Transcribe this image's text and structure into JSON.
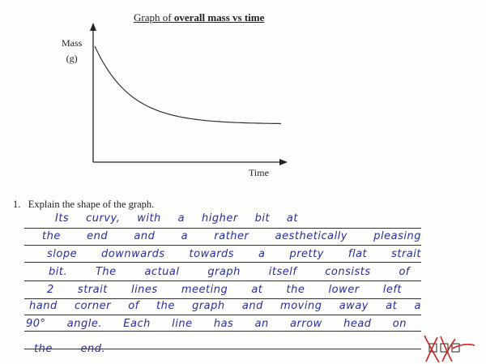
{
  "chart_data": {
    "type": "line",
    "title_plain": "Graph of",
    "title_bold": "overall mass vs time",
    "ylabel_line1": "Mass",
    "ylabel_line2": "(g)",
    "xlabel": "Time",
    "grid": false,
    "tick_labels": false,
    "shape": "decaying curve levelling off to a horizontal plateau",
    "curve_color": "#333333"
  },
  "question": {
    "number": "1.",
    "text": "Explain the shape of the graph."
  },
  "answer_lines": [
    "Its curvy, with a higher bit at",
    "the end and a rather aesthetically pleasing",
    "slope downwards towards a pretty flat strait",
    "bit. The actual graph itself consists of",
    "2 strait lines meeting at the lower left",
    "hand corner of the graph and moving away at a",
    "90° angle. Each line has an arrow head on",
    "the end."
  ],
  "handwriting_color": "#27309a",
  "marking": {
    "cross_color": "#cc2222",
    "boxes": 3
  }
}
